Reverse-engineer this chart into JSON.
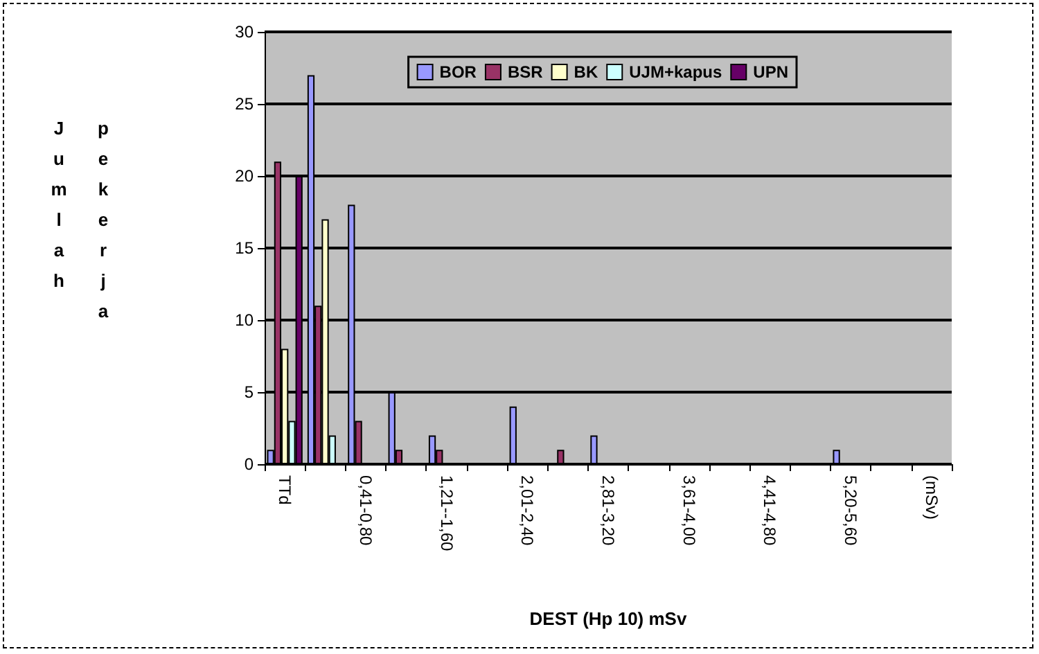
{
  "chart_data": {
    "type": "bar",
    "xlabel": "DEST (Hp 10) mSv",
    "ylabel": "Jumlah pekerja",
    "categories": [
      "TTd",
      null,
      "0,41-0,80",
      null,
      "1,21--1,60",
      null,
      "2,01-2,40",
      null,
      "2,81-3,20",
      null,
      "3,61-4,00",
      null,
      "4,41-4,80",
      null,
      "5,20-5,60",
      null,
      "(mSv)"
    ],
    "series": [
      {
        "name": "BOR",
        "color": "#9999ff",
        "values": [
          1,
          27,
          18,
          5,
          2,
          0,
          4,
          0,
          2,
          0,
          0,
          0,
          0,
          0,
          1,
          0,
          0
        ]
      },
      {
        "name": "BSR",
        "color": "#993366",
        "values": [
          21,
          11,
          3,
          1,
          1,
          0,
          0,
          1,
          0,
          0,
          0,
          0,
          0,
          0,
          0,
          0,
          0
        ]
      },
      {
        "name": "BK",
        "color": "#ffffcc",
        "values": [
          8,
          17,
          0,
          0,
          0,
          0,
          0,
          0,
          0,
          0,
          0,
          0,
          0,
          0,
          0,
          0,
          0
        ]
      },
      {
        "name": "UJM+kapus",
        "color": "#ccffff",
        "values": [
          3,
          2,
          0,
          0,
          0,
          0,
          0,
          0,
          0,
          0,
          0,
          0,
          0,
          0,
          0,
          0,
          0
        ]
      },
      {
        "name": "UPN",
        "color": "#660066",
        "values": [
          20,
          0,
          0,
          0,
          0,
          0,
          0,
          0,
          0,
          0,
          0,
          0,
          0,
          0,
          0,
          0,
          0
        ]
      }
    ],
    "ylim": [
      0,
      30
    ],
    "yticks": [
      0,
      5,
      10,
      15,
      20,
      25,
      30
    ],
    "grid": "y",
    "legend": "top right"
  }
}
